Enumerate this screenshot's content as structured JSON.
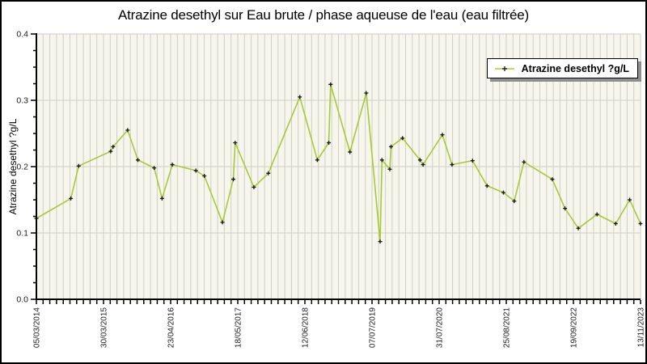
{
  "title": "Atrazine desethyl sur Eau brute / phase aqueuse de l'eau (eau filtrée)",
  "legend": {
    "label": "Atrazine desethyl ?g/L",
    "position": "top-right"
  },
  "y_axis": {
    "label": "Atrazine desethyl ?g/L",
    "tick_labels": [
      "0.0",
      "0.1",
      "0.2",
      "0.3",
      "0.4"
    ],
    "min": 0.0,
    "max": 0.4
  },
  "x_axis": {
    "tick_labels": [
      "05/03/2014",
      "30/03/2015",
      "23/04/2016",
      "18/05/2017",
      "12/06/2018",
      "07/07/2019",
      "31/07/2020",
      "25/08/2021",
      "19/09/2022",
      "13/11/2023"
    ],
    "minor_divisions": 90
  },
  "colors": {
    "line": "#a8c83a",
    "marker": "#141414",
    "plot_bg": "#f6f6ec",
    "grid": "#cfcfc6",
    "axis": "#000000",
    "text": "#1a1a1a",
    "legend_shadow": "#8f8f8f"
  },
  "chart_data": {
    "type": "line",
    "title": "Atrazine desethyl sur Eau brute / phase aqueuse de l'eau (eau filtrée)",
    "xlabel": "",
    "ylabel": "Atrazine desethyl ?g/L",
    "ylim": [
      0.0,
      0.4
    ],
    "x_range": [
      "05/03/2014",
      "13/11/2023"
    ],
    "grid": "on",
    "legend_position": "top-right",
    "series": [
      {
        "name": "Atrazine desethyl ?g/L",
        "marker": "plus",
        "points_x_fraction_value": [
          [
            0.0,
            0.122
          ],
          [
            0.057,
            0.152
          ],
          [
            0.07,
            0.201
          ],
          [
            0.123,
            0.223
          ],
          [
            0.127,
            0.23
          ],
          [
            0.151,
            0.255
          ],
          [
            0.168,
            0.21
          ],
          [
            0.195,
            0.198
          ],
          [
            0.208,
            0.152
          ],
          [
            0.225,
            0.203
          ],
          [
            0.264,
            0.194
          ],
          [
            0.278,
            0.186
          ],
          [
            0.308,
            0.116
          ],
          [
            0.326,
            0.181
          ],
          [
            0.329,
            0.236
          ],
          [
            0.36,
            0.169
          ],
          [
            0.384,
            0.19
          ],
          [
            0.436,
            0.305
          ],
          [
            0.465,
            0.21
          ],
          [
            0.484,
            0.236
          ],
          [
            0.487,
            0.324
          ],
          [
            0.519,
            0.222
          ],
          [
            0.546,
            0.311
          ],
          [
            0.569,
            0.087
          ],
          [
            0.572,
            0.21
          ],
          [
            0.585,
            0.196
          ],
          [
            0.587,
            0.23
          ],
          [
            0.606,
            0.243
          ],
          [
            0.635,
            0.21
          ],
          [
            0.64,
            0.203
          ],
          [
            0.672,
            0.248
          ],
          [
            0.688,
            0.203
          ],
          [
            0.722,
            0.209
          ],
          [
            0.746,
            0.171
          ],
          [
            0.773,
            0.161
          ],
          [
            0.791,
            0.148
          ],
          [
            0.807,
            0.207
          ],
          [
            0.854,
            0.181
          ],
          [
            0.875,
            0.137
          ],
          [
            0.897,
            0.107
          ],
          [
            0.928,
            0.128
          ],
          [
            0.959,
            0.114
          ],
          [
            0.982,
            0.15
          ],
          [
            1.0,
            0.114
          ]
        ]
      }
    ]
  }
}
